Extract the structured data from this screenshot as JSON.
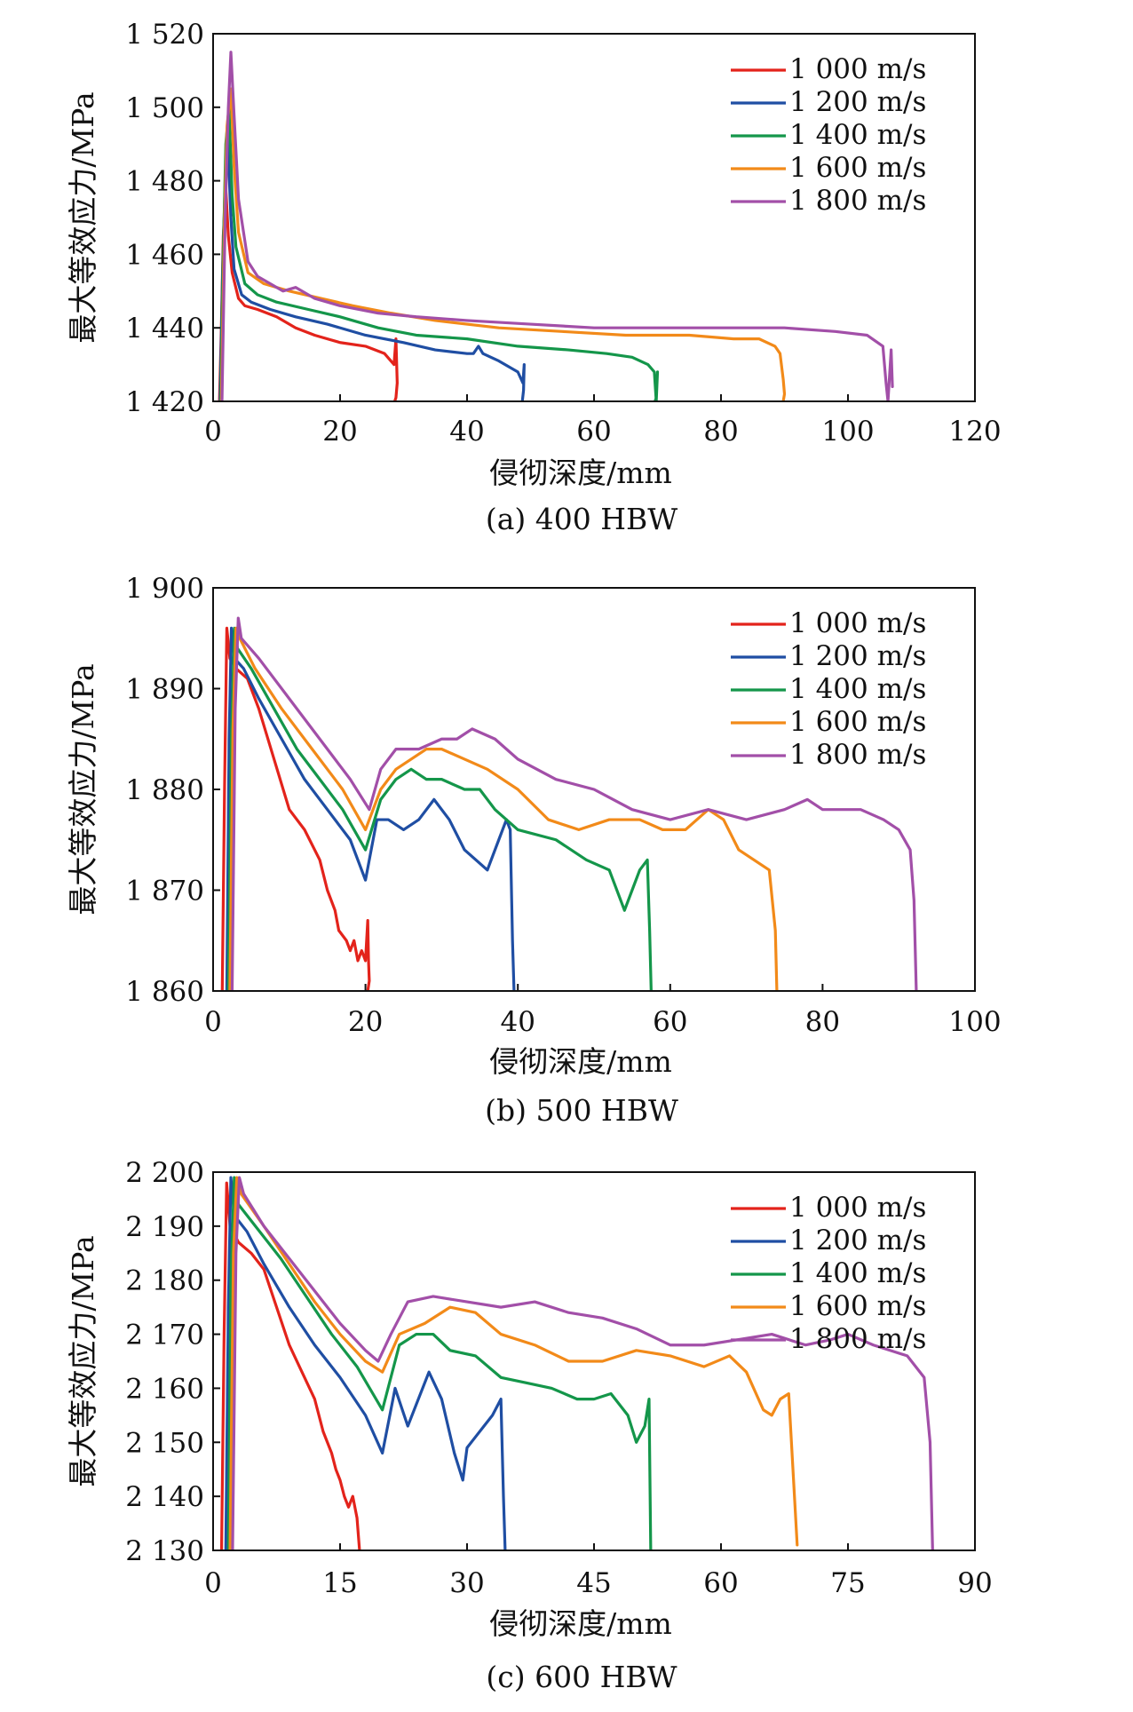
{
  "chart_data": [
    {
      "type": "line",
      "caption": "(a) 400 HBW",
      "xlabel": "侵彻深度/mm",
      "ylabel": "最大等效应力/MPa",
      "xlim": [
        0,
        120
      ],
      "ylim": [
        1420,
        1520
      ],
      "xticks": [
        "0",
        "20",
        "40",
        "60",
        "80",
        "100",
        "120"
      ],
      "yticks": [
        "1 420",
        "1 440",
        "1 460",
        "1 480",
        "1 500",
        "1 520"
      ],
      "legend_position": "top-right",
      "series": [
        {
          "name": "1 000 m/s",
          "color": "#e3231b",
          "x": [
            1.0,
            1.3,
            1.6,
            2.0,
            2.4,
            3.0,
            4.0,
            5.0,
            7.0,
            10.0,
            13.0,
            16.0,
            20.0,
            24.0,
            27.0,
            28.5,
            28.8,
            29.0,
            28.8,
            28.6
          ],
          "y": [
            1420,
            1440,
            1465,
            1478,
            1465,
            1455,
            1448,
            1446,
            1445,
            1443,
            1440,
            1438,
            1436,
            1435,
            1433,
            1430,
            1437,
            1425,
            1421,
            1420
          ]
        },
        {
          "name": "1 200 m/s",
          "color": "#1f4ea3",
          "x": [
            1.1,
            1.5,
            1.9,
            2.3,
            2.8,
            3.3,
            4.5,
            6.0,
            9.0,
            13.0,
            18.0,
            24.0,
            30.0,
            35.0,
            40.0,
            41.0,
            41.8,
            42.5,
            45.0,
            48.0,
            48.8,
            49.0,
            48.9,
            48.7
          ],
          "y": [
            1420,
            1455,
            1480,
            1492,
            1470,
            1456,
            1449,
            1447,
            1445,
            1443,
            1441,
            1438,
            1436,
            1434,
            1433,
            1433,
            1435,
            1433,
            1431,
            1428,
            1425,
            1430,
            1423,
            1420
          ]
        },
        {
          "name": "1 400 m/s",
          "color": "#14964a",
          "x": [
            1.2,
            1.6,
            2.0,
            2.5,
            3.0,
            3.6,
            5.0,
            7.0,
            10.0,
            15.0,
            20.0,
            26.0,
            32.0,
            40.0,
            48.0,
            56.0,
            62.0,
            66.0,
            68.5,
            69.5,
            69.8,
            70.0,
            69.8,
            69.6
          ],
          "y": [
            1420,
            1460,
            1490,
            1500,
            1476,
            1462,
            1452,
            1449,
            1447,
            1445,
            1443,
            1440,
            1438,
            1437,
            1435,
            1434,
            1433,
            1432,
            1430,
            1428,
            1420,
            1428,
            1421,
            1420
          ]
        },
        {
          "name": "1 600 m/s",
          "color": "#f28a19",
          "x": [
            1.3,
            1.8,
            2.2,
            2.8,
            3.3,
            4.0,
            5.5,
            8.0,
            12.0,
            17.0,
            22.0,
            28.0,
            35.0,
            45.0,
            55.0,
            65.0,
            75.0,
            82.0,
            86.0,
            88.5,
            89.3,
            89.8,
            90.0,
            89.8
          ],
          "y": [
            1420,
            1470,
            1495,
            1505,
            1484,
            1466,
            1455,
            1452,
            1450,
            1448,
            1446,
            1444,
            1442,
            1440,
            1439,
            1438,
            1438,
            1437,
            1437,
            1435,
            1433,
            1426,
            1422,
            1420
          ]
        },
        {
          "name": "1 800 m/s",
          "color": "#a24fa8",
          "x": [
            1.4,
            1.9,
            2.4,
            2.8,
            3.3,
            4.0,
            5.5,
            7.0,
            9.0,
            11.0,
            13.0,
            16.0,
            20.0,
            26.0,
            32.0,
            40.0,
            50.0,
            60.0,
            70.0,
            80.0,
            90.0,
            98.0,
            103.0,
            105.5,
            106.0,
            106.3,
            106.8,
            107.0
          ],
          "y": [
            1420,
            1470,
            1500,
            1515,
            1498,
            1475,
            1458,
            1454,
            1452,
            1450,
            1451,
            1448,
            1446,
            1444,
            1443,
            1442,
            1441,
            1440,
            1440,
            1440,
            1440,
            1439,
            1438,
            1435,
            1425,
            1420,
            1434,
            1424
          ]
        }
      ]
    },
    {
      "type": "line",
      "caption": "(b) 500 HBW",
      "xlabel": "侵彻深度/mm",
      "ylabel": "最大等效应力/MPa",
      "xlim": [
        0,
        100
      ],
      "ylim": [
        1860,
        1900
      ],
      "xticks": [
        "0",
        "20",
        "40",
        "60",
        "80",
        "100"
      ],
      "yticks": [
        "1 860",
        "1 870",
        "1 880",
        "1 890",
        "1 900"
      ],
      "legend_position": "top-right",
      "series": [
        {
          "name": "1 000 m/s",
          "color": "#e3231b",
          "x": [
            1.2,
            1.5,
            1.8,
            2.2,
            3.0,
            4.5,
            6.0,
            8.0,
            10.0,
            12.0,
            14.0,
            15.0,
            16.0,
            16.5,
            17.5,
            18.0,
            18.5,
            19.0,
            19.5,
            20.0,
            20.3,
            20.4,
            20.5,
            20.3
          ],
          "y": [
            1860,
            1880,
            1896,
            1893,
            1892,
            1891,
            1888,
            1883,
            1878,
            1876,
            1873,
            1870,
            1868,
            1866,
            1865,
            1864,
            1865,
            1863,
            1864,
            1863,
            1867,
            1863,
            1861,
            1860
          ]
        },
        {
          "name": "1 200 m/s",
          "color": "#1f4ea3",
          "x": [
            1.8,
            2.1,
            2.4,
            2.8,
            4.0,
            6.0,
            9.0,
            12.0,
            15.0,
            18.0,
            20.0,
            21.5,
            23.0,
            25.0,
            27.0,
            29.0,
            31.0,
            33.0,
            34.5,
            36.0,
            37.5,
            38.5,
            39.0,
            39.3,
            39.5
          ],
          "y": [
            1860,
            1885,
            1896,
            1893,
            1892,
            1889,
            1885,
            1881,
            1878,
            1875,
            1871,
            1877,
            1877,
            1876,
            1877,
            1879,
            1877,
            1874,
            1873,
            1872,
            1875,
            1877,
            1876,
            1865,
            1860
          ]
        },
        {
          "name": "1 400 m/s",
          "color": "#14964a",
          "x": [
            2.0,
            2.4,
            2.8,
            3.2,
            5.0,
            8.0,
            11.0,
            14.0,
            17.0,
            20.0,
            22.0,
            24.0,
            26.0,
            28.0,
            30.0,
            33.0,
            35.0,
            37.0,
            40.0,
            45.0,
            49.0,
            52.0,
            54.0,
            55.0,
            56.0,
            57.0,
            57.3,
            57.5
          ],
          "y": [
            1860,
            1885,
            1896,
            1894,
            1892,
            1888,
            1884,
            1881,
            1878,
            1874,
            1879,
            1881,
            1882,
            1881,
            1881,
            1880,
            1880,
            1878,
            1876,
            1875,
            1873,
            1872,
            1868,
            1870,
            1872,
            1873,
            1866,
            1860
          ]
        },
        {
          "name": "1 600 m/s",
          "color": "#f28a19",
          "x": [
            2.2,
            2.6,
            3.0,
            3.5,
            5.5,
            9.0,
            13.0,
            17.0,
            20.0,
            22.0,
            24.0,
            26.0,
            28.0,
            30.0,
            33.0,
            36.0,
            40.0,
            44.0,
            48.0,
            52.0,
            56.0,
            59.0,
            62.0,
            65.0,
            67.0,
            69.0,
            71.0,
            73.0,
            73.8,
            74.0
          ],
          "y": [
            1860,
            1886,
            1896,
            1895,
            1892,
            1888,
            1884,
            1880,
            1876,
            1880,
            1882,
            1883,
            1884,
            1884,
            1883,
            1882,
            1880,
            1877,
            1876,
            1877,
            1877,
            1876,
            1876,
            1878,
            1877,
            1874,
            1873,
            1872,
            1866,
            1860
          ]
        },
        {
          "name": "1 800 m/s",
          "color": "#a24fa8",
          "x": [
            2.5,
            2.9,
            3.3,
            3.7,
            6.0,
            10.0,
            14.0,
            18.0,
            20.5,
            22.0,
            24.0,
            27.0,
            30.0,
            32.0,
            34.0,
            37.0,
            40.0,
            45.0,
            50.0,
            55.0,
            60.0,
            65.0,
            70.0,
            75.0,
            78.0,
            80.0,
            85.0,
            88.0,
            90.0,
            91.5,
            92.0,
            92.3
          ],
          "y": [
            1860,
            1888,
            1897,
            1895,
            1893,
            1889,
            1885,
            1881,
            1878,
            1882,
            1884,
            1884,
            1885,
            1885,
            1886,
            1885,
            1883,
            1881,
            1880,
            1878,
            1877,
            1878,
            1877,
            1878,
            1879,
            1878,
            1878,
            1877,
            1876,
            1874,
            1869,
            1860
          ]
        }
      ]
    },
    {
      "type": "line",
      "caption": "(c) 600 HBW",
      "xlabel": "侵彻深度/mm",
      "ylabel": "最大等效应力/MPa",
      "xlim": [
        0,
        90
      ],
      "ylim": [
        2130,
        2200
      ],
      "xticks": [
        "0",
        "15",
        "30",
        "45",
        "60",
        "75",
        "90"
      ],
      "yticks": [
        "2 130",
        "2 140",
        "2 150",
        "2 160",
        "2 170",
        "2 180",
        "2 190",
        "2 200"
      ],
      "legend_position": "top-right",
      "series": [
        {
          "name": "1 000 m/s",
          "color": "#e3231b",
          "x": [
            1.0,
            1.3,
            1.6,
            2.0,
            3.0,
            4.5,
            6.0,
            7.5,
            9.0,
            10.5,
            12.0,
            13.0,
            14.0,
            14.5,
            15.0,
            15.5,
            16.0,
            16.5,
            17.0,
            17.2,
            17.3
          ],
          "y": [
            2130,
            2170,
            2198,
            2190,
            2187,
            2185,
            2182,
            2175,
            2168,
            2163,
            2158,
            2152,
            2148,
            2145,
            2143,
            2140,
            2138,
            2140,
            2136,
            2132,
            2130
          ]
        },
        {
          "name": "1 200 m/s",
          "color": "#1f4ea3",
          "x": [
            1.5,
            1.8,
            2.1,
            2.5,
            4.0,
            6.0,
            9.0,
            12.0,
            15.0,
            18.0,
            20.0,
            21.5,
            23.0,
            24.0,
            25.5,
            27.0,
            28.5,
            29.5,
            30.0,
            31.0,
            32.0,
            33.0,
            34.0,
            34.3,
            34.5
          ],
          "y": [
            2130,
            2175,
            2199,
            2192,
            2189,
            2183,
            2175,
            2168,
            2162,
            2155,
            2148,
            2160,
            2153,
            2157,
            2163,
            2158,
            2148,
            2143,
            2149,
            2151,
            2153,
            2155,
            2158,
            2140,
            2130
          ]
        },
        {
          "name": "1 400 m/s",
          "color": "#14964a",
          "x": [
            1.8,
            2.1,
            2.5,
            3.0,
            5.0,
            8.0,
            11.0,
            14.0,
            17.0,
            20.0,
            22.0,
            24.0,
            26.0,
            28.0,
            31.0,
            34.0,
            37.0,
            40.0,
            43.0,
            45.0,
            47.0,
            49.0,
            50.0,
            51.0,
            51.5,
            51.7
          ],
          "y": [
            2130,
            2180,
            2199,
            2194,
            2190,
            2184,
            2177,
            2170,
            2164,
            2156,
            2168,
            2170,
            2170,
            2167,
            2166,
            2162,
            2161,
            2160,
            2158,
            2158,
            2159,
            2155,
            2150,
            2153,
            2158,
            2130
          ]
        },
        {
          "name": "1 600 m/s",
          "color": "#f28a19",
          "x": [
            2.0,
            2.4,
            2.8,
            3.3,
            6.0,
            9.0,
            12.0,
            15.0,
            18.0,
            20.0,
            22.0,
            25.0,
            28.0,
            31.0,
            34.0,
            38.0,
            42.0,
            46.0,
            50.0,
            54.0,
            58.0,
            61.0,
            63.0,
            65.0,
            66.0,
            67.0,
            68.0,
            68.5,
            69.0
          ],
          "y": [
            2130,
            2185,
            2199,
            2196,
            2190,
            2183,
            2176,
            2170,
            2165,
            2163,
            2170,
            2172,
            2175,
            2174,
            2170,
            2168,
            2165,
            2165,
            2167,
            2166,
            2164,
            2166,
            2163,
            2156,
            2155,
            2158,
            2159,
            2145,
            2131
          ]
        },
        {
          "name": "1 800 m/s",
          "color": "#a24fa8",
          "x": [
            2.3,
            2.7,
            3.1,
            3.6,
            6.0,
            9.0,
            12.0,
            15.0,
            18.0,
            19.5,
            21.0,
            23.0,
            26.0,
            30.0,
            34.0,
            38.0,
            42.0,
            46.0,
            50.0,
            54.0,
            58.0,
            62.0,
            66.0,
            70.0,
            73.0,
            75.0,
            78.0,
            82.0,
            84.0,
            84.7,
            85.0
          ],
          "y": [
            2130,
            2185,
            2199,
            2196,
            2190,
            2184,
            2178,
            2172,
            2167,
            2165,
            2170,
            2176,
            2177,
            2176,
            2175,
            2176,
            2174,
            2173,
            2171,
            2168,
            2168,
            2169,
            2170,
            2168,
            2169,
            2170,
            2168,
            2166,
            2162,
            2150,
            2130
          ]
        }
      ]
    }
  ]
}
